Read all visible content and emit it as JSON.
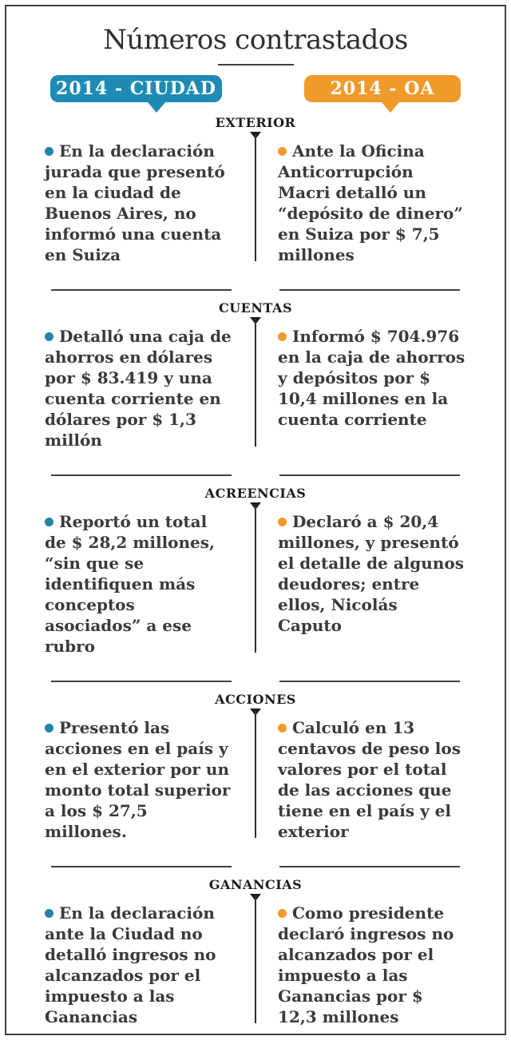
{
  "title": "Números contrastados",
  "badges": {
    "left": {
      "label": "2014 - CIUDAD",
      "color": "#1e8bb4"
    },
    "right": {
      "label": "2014 - OA",
      "color": "#f09a2c"
    }
  },
  "colors": {
    "blue_accent": "#1e8bb4",
    "orange_accent": "#f09a2c",
    "body_text": "#3a3a3a",
    "line": "#3f3f3f"
  },
  "icons": {
    "blue_bullet": "filled-circle",
    "orange_bullet": "filled-circle",
    "section_pointer": "down-triangle",
    "badge_tail": "down-triangle"
  },
  "sections": [
    {
      "header": "EXTERIOR",
      "left": "En la declaración jurada que presentó en la ciudad de Buenos Aires, no informó una cuenta en Suiza",
      "right": "Ante la Oficina Anticorrupción Macri detalló un “depósito de dinero” en Suiza por $ 7,5 millones"
    },
    {
      "header": "CUENTAS",
      "left": "Detalló una caja de ahorros en dólares por $ 83.419 y una cuenta corriente en dólares por $ 1,3 millón",
      "right": "Informó $ 704.976 en la caja de ahorros y depósitos por $ 10,4 millones en la cuenta corriente"
    },
    {
      "header": "ACREENCIAS",
      "left": "Reportó un total de $ 28,2 millones, “sin que se identifiquen más conceptos asociados” a ese rubro",
      "right": "Declaró a $ 20,4 millones, y presentó el detalle de algunos deudores; entre ellos, Nicolás Caputo"
    },
    {
      "header": "ACCIONES",
      "left": "Presentó las acciones en el país y en el exterior por un monto total superior a los $ 27,5 millones.",
      "right": "Calculó en 13 centavos de peso los valores por el total de las acciones que tiene en el país y el exterior"
    },
    {
      "header": "GANANCIAS",
      "left": "En la declaración ante la Ciudad no detalló ingresos no alcanzados por el impuesto a las Ganancias",
      "right": "Como presidente declaró ingresos no alcanzados por el impuesto a las Ganancias por $ 12,3 millones"
    }
  ]
}
